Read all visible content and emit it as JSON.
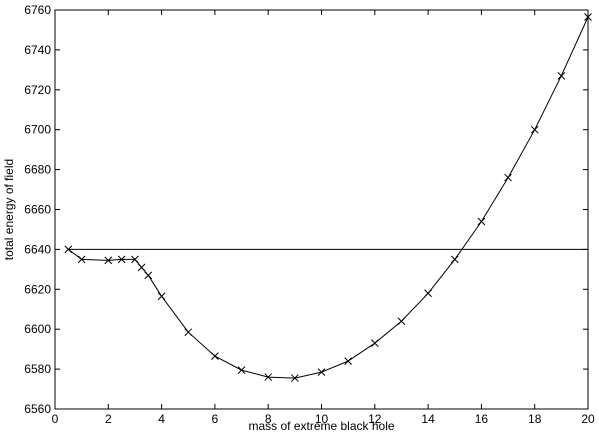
{
  "chart_data": {
    "type": "line",
    "title": "",
    "xlabel": "mass of extreme black hole",
    "ylabel": "total energy of field",
    "xlim": [
      0,
      20
    ],
    "ylim": [
      6560,
      6760
    ],
    "xticks": [
      0,
      2,
      4,
      6,
      8,
      10,
      12,
      14,
      16,
      18,
      20
    ],
    "yticks": [
      6560,
      6580,
      6600,
      6620,
      6640,
      6660,
      6680,
      6700,
      6720,
      6740,
      6760
    ],
    "grid": false,
    "legend": "none",
    "line_color": "#000000",
    "series": [
      {
        "marker": "x",
        "x": [
          0.5,
          1,
          2,
          2.5,
          3,
          3.25,
          3.5,
          4,
          5,
          6,
          7,
          8,
          9,
          10,
          11,
          12,
          13,
          14,
          15,
          16,
          17,
          18,
          19,
          20
        ],
        "y": [
          6640,
          6635,
          6634.5,
          6635,
          6635,
          6631,
          6627,
          6616.5,
          6598.5,
          6586.5,
          6579.5,
          6576,
          6575.5,
          6578.5,
          6584,
          6593,
          6604,
          6618,
          6635,
          6654,
          6676,
          6700,
          6727,
          6756.5
        ]
      },
      {
        "marker": "none",
        "x": [
          0.5,
          20
        ],
        "y": [
          6640,
          6640
        ]
      }
    ]
  }
}
